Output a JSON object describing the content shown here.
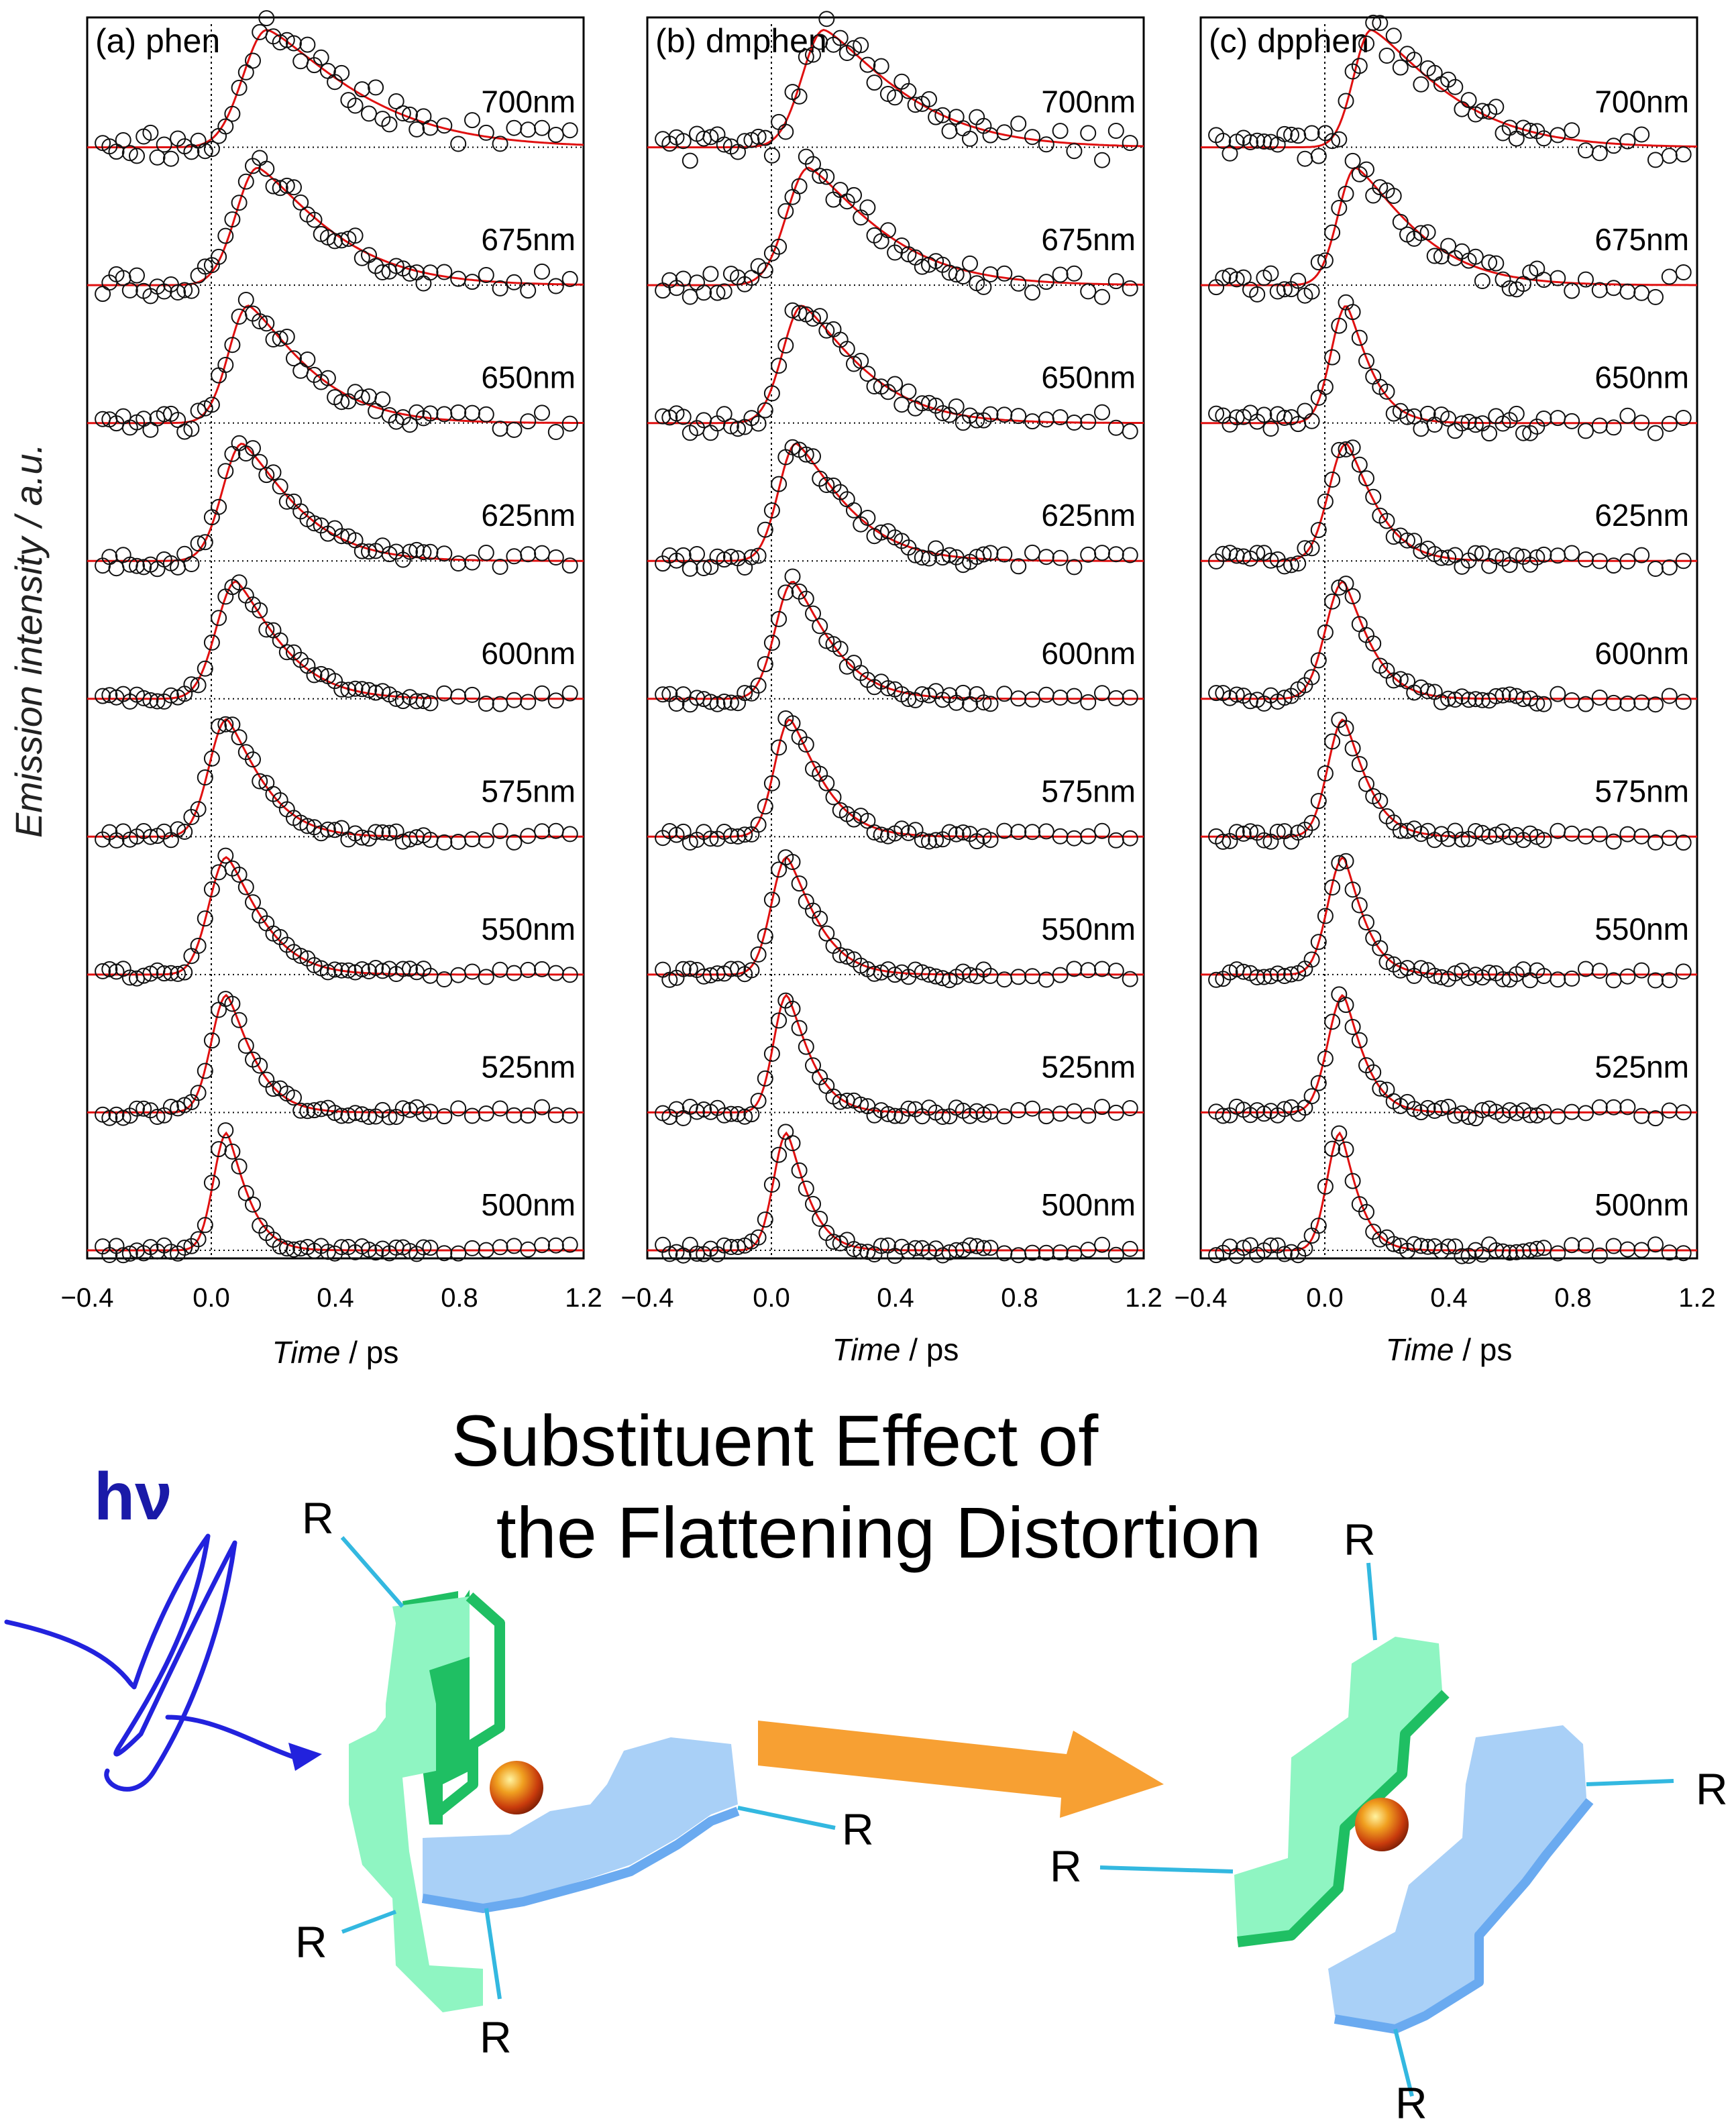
{
  "figure": {
    "ylabel": "Emission intensity / a.u.",
    "xlabel_italic": "Time",
    "xlabel_unit": " / ps",
    "fit_color": "#e01010",
    "point_color": "#111111"
  },
  "chart_data": [
    {
      "type": "scatter",
      "title": "(a) phen",
      "xlabel": "Time / ps",
      "ylabel": "Emission intensity / a.u.",
      "xlim": [
        -0.4,
        1.2
      ],
      "xticks": [
        "−0.4",
        "0.0",
        "0.4",
        "0.8",
        "1.2"
      ],
      "series": [
        {
          "name": "700nm",
          "peak": 0.18,
          "rise": 0.11,
          "decay": 0.3
        },
        {
          "name": "675nm",
          "peak": 0.15,
          "rise": 0.1,
          "decay": 0.24
        },
        {
          "name": "650nm",
          "peak": 0.12,
          "rise": 0.09,
          "decay": 0.2
        },
        {
          "name": "625nm",
          "peak": 0.1,
          "rise": 0.09,
          "decay": 0.18
        },
        {
          "name": "600nm",
          "peak": 0.08,
          "rise": 0.09,
          "decay": 0.15
        },
        {
          "name": "575nm",
          "peak": 0.05,
          "rise": 0.08,
          "decay": 0.12
        },
        {
          "name": "550nm",
          "peak": 0.05,
          "rise": 0.08,
          "decay": 0.12
        },
        {
          "name": "525nm",
          "peak": 0.05,
          "rise": 0.07,
          "decay": 0.09
        },
        {
          "name": "500nm",
          "peak": 0.05,
          "rise": 0.06,
          "decay": 0.07
        }
      ]
    },
    {
      "type": "scatter",
      "title": "(b) dmphen",
      "xlabel": "Time / ps",
      "ylabel": "Emission intensity / a.u.",
      "xlim": [
        -0.4,
        1.2
      ],
      "xticks": [
        "−0.4",
        "0.0",
        "0.4",
        "0.8",
        "1.2"
      ],
      "series": [
        {
          "name": "700nm",
          "peak": 0.17,
          "rise": 0.1,
          "decay": 0.26
        },
        {
          "name": "675nm",
          "peak": 0.12,
          "rise": 0.1,
          "decay": 0.24
        },
        {
          "name": "650nm",
          "peak": 0.1,
          "rise": 0.09,
          "decay": 0.2
        },
        {
          "name": "625nm",
          "peak": 0.08,
          "rise": 0.08,
          "decay": 0.17
        },
        {
          "name": "600nm",
          "peak": 0.07,
          "rise": 0.08,
          "decay": 0.13
        },
        {
          "name": "575nm",
          "peak": 0.06,
          "rise": 0.07,
          "decay": 0.11
        },
        {
          "name": "550nm",
          "peak": 0.05,
          "rise": 0.07,
          "decay": 0.1
        },
        {
          "name": "525nm",
          "peak": 0.05,
          "rise": 0.06,
          "decay": 0.08
        },
        {
          "name": "500nm",
          "peak": 0.05,
          "rise": 0.06,
          "decay": 0.07
        }
      ]
    },
    {
      "type": "scatter",
      "title": "(c) dpphen",
      "xlabel": "Time / ps",
      "ylabel": "Emission intensity / a.u.",
      "xlim": [
        -0.4,
        1.2
      ],
      "xticks": [
        "−0.4",
        "0.0",
        "0.4",
        "0.8",
        "1.2"
      ],
      "series": [
        {
          "name": "700nm",
          "peak": 0.15,
          "rise": 0.08,
          "decay": 0.25
        },
        {
          "name": "675nm",
          "peak": 0.1,
          "rise": 0.08,
          "decay": 0.2
        },
        {
          "name": "650nm",
          "peak": 0.07,
          "rise": 0.07,
          "decay": 0.08
        },
        {
          "name": "625nm",
          "peak": 0.07,
          "rise": 0.08,
          "decay": 0.1
        },
        {
          "name": "600nm",
          "peak": 0.06,
          "rise": 0.08,
          "decay": 0.09
        },
        {
          "name": "575nm",
          "peak": 0.06,
          "rise": 0.07,
          "decay": 0.08
        },
        {
          "name": "550nm",
          "peak": 0.06,
          "rise": 0.07,
          "decay": 0.07
        },
        {
          "name": "525nm",
          "peak": 0.06,
          "rise": 0.07,
          "decay": 0.07
        },
        {
          "name": "500nm",
          "peak": 0.05,
          "rise": 0.06,
          "decay": 0.06
        }
      ]
    }
  ],
  "scheme": {
    "title_line1": "Substituent Effect of",
    "title_line2": "the Flattening Distortion",
    "hv": "hν",
    "substituent": "R",
    "arrow_color": "#f7a033",
    "green_color": "#8ff5c2",
    "green_edge": "#1fbf63",
    "blue_color": "#a9d0f7",
    "blue_edge": "#6aaaf0",
    "pulse_color": "#2222dd",
    "stick_color": "#33b8e0",
    "atom_color": "#d93a10"
  }
}
